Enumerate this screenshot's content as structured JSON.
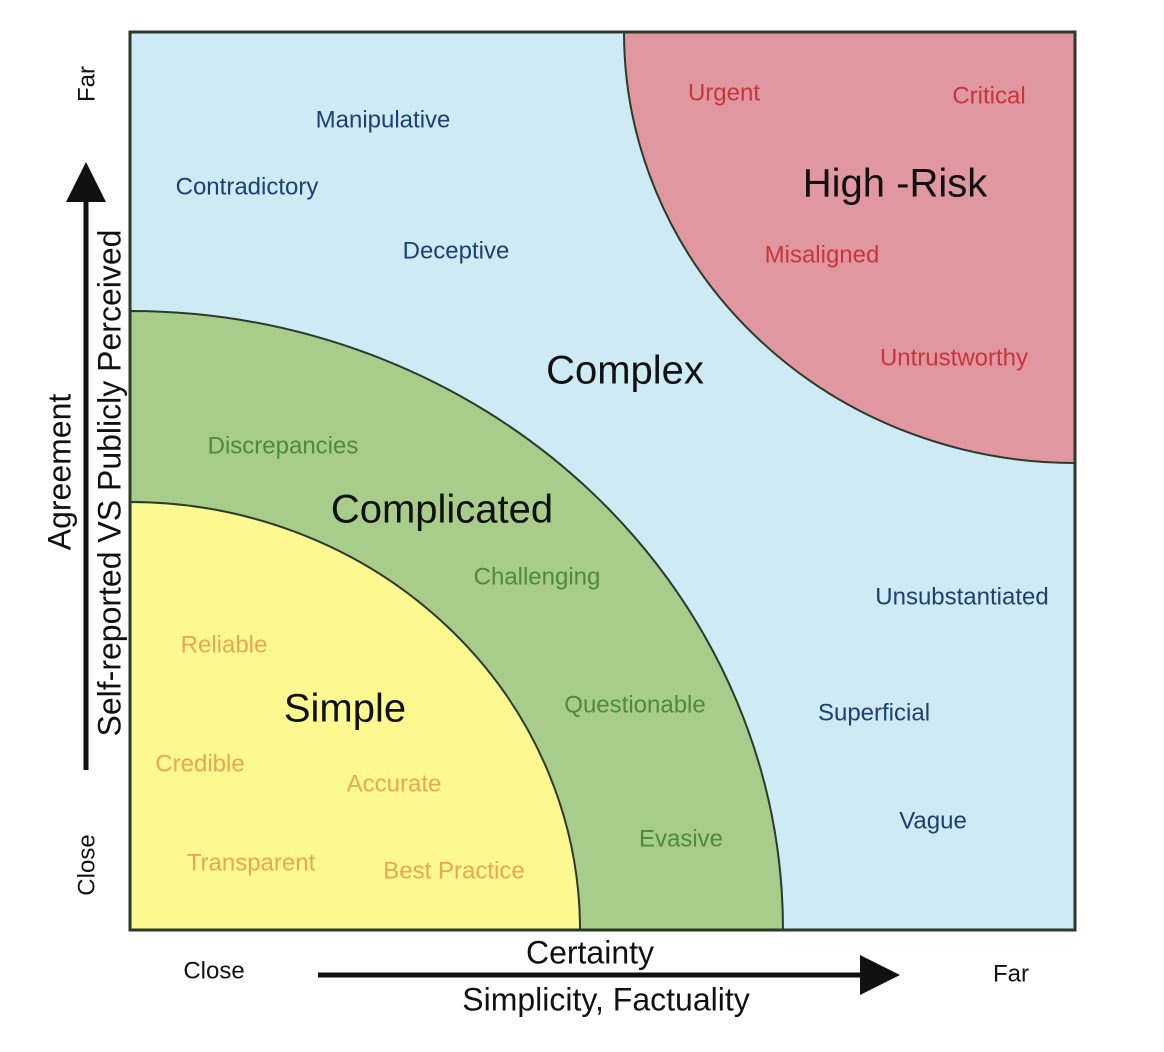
{
  "regions": [
    {
      "label": "Complex",
      "words": [
        "Manipulative",
        "Contradictory",
        "Deceptive",
        "Unsubstantiated",
        "Superficial",
        "Vague"
      ]
    },
    {
      "label": "High -Risk",
      "words": [
        "Urgent",
        "Critical",
        "Misaligned",
        "Untrustworthy"
      ]
    },
    {
      "label": "Complicated",
      "words": [
        "Discrepancies",
        "Challenging",
        "Questionable",
        "Evasive"
      ]
    },
    {
      "label": "Simple",
      "words": [
        "Reliable",
        "Credible",
        "Accurate",
        "Transparent",
        "Best Practice"
      ]
    }
  ],
  "x_axis": {
    "title": "Certainty",
    "subtitle": "Simplicity, Factuality",
    "low": "Close",
    "high": "Far"
  },
  "y_axis": {
    "title": "Agreement",
    "subtitle": "Self-reported VS Publicly Perceived",
    "low": "Close",
    "high": "Far"
  }
}
